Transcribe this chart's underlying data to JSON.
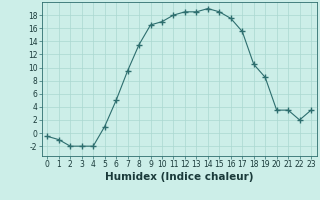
{
  "x": [
    0,
    1,
    2,
    3,
    4,
    5,
    6,
    7,
    8,
    9,
    10,
    11,
    12,
    13,
    14,
    15,
    16,
    17,
    18,
    19,
    20,
    21,
    22,
    23
  ],
  "y": [
    -0.5,
    -1.0,
    -2.0,
    -2.0,
    -2.0,
    1.0,
    5.0,
    9.5,
    13.5,
    16.5,
    17.0,
    18.0,
    18.5,
    18.5,
    19.0,
    18.5,
    17.5,
    15.5,
    10.5,
    8.5,
    3.5,
    3.5,
    2.0,
    3.5
  ],
  "xlabel": "Humidex (Indice chaleur)",
  "line_color": "#2d6e6e",
  "marker": "+",
  "marker_size": 4,
  "bg_color": "#cceee8",
  "grid_color": "#aad8d0",
  "xlim": [
    -0.5,
    23.5
  ],
  "ylim": [
    -3.5,
    20.0
  ],
  "yticks": [
    -2,
    0,
    2,
    4,
    6,
    8,
    10,
    12,
    14,
    16,
    18
  ],
  "xticks": [
    0,
    1,
    2,
    3,
    4,
    5,
    6,
    7,
    8,
    9,
    10,
    11,
    12,
    13,
    14,
    15,
    16,
    17,
    18,
    19,
    20,
    21,
    22,
    23
  ],
  "tick_label_fontsize": 5.5,
  "xlabel_fontsize": 7.5
}
